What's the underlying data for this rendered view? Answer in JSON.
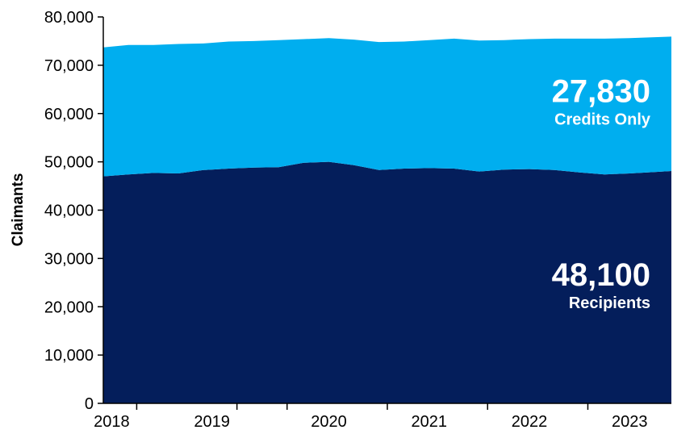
{
  "chart_data": {
    "type": "area",
    "stacked": true,
    "ylabel": "Claimants",
    "ylim": [
      0,
      80000
    ],
    "yticks": [
      0,
      10000,
      20000,
      30000,
      40000,
      50000,
      60000,
      70000,
      80000
    ],
    "ytick_labels": [
      "0",
      "10,000",
      "20,000",
      "30,000",
      "40,000",
      "50,000",
      "60,000",
      "70,000",
      "80,000"
    ],
    "xlim": [
      "2017-12",
      "2023-08"
    ],
    "xtick_labels": [
      {
        "label": "2018",
        "x": "2018-01"
      },
      {
        "label": "2019",
        "x": "2019-01"
      },
      {
        "label": "2020",
        "x": "2020-03"
      },
      {
        "label": "2021",
        "x": "2021-03"
      },
      {
        "label": "2022",
        "x": "2022-03"
      },
      {
        "label": "2023",
        "x": "2023-03"
      }
    ],
    "xtick_marks": [
      "2018-04",
      "2019-04",
      "2019-10",
      "2020-10",
      "2021-10",
      "2022-10"
    ],
    "x": [
      "2017-12",
      "2018-03",
      "2018-06",
      "2018-09",
      "2018-12",
      "2019-03",
      "2019-06",
      "2019-09",
      "2019-12",
      "2020-03",
      "2020-06",
      "2020-09",
      "2020-12",
      "2021-03",
      "2021-06",
      "2021-09",
      "2021-12",
      "2022-03",
      "2022-06",
      "2022-09",
      "2022-12",
      "2023-03",
      "2023-06",
      "2023-08"
    ],
    "series": [
      {
        "name": "Recipients",
        "color": "#041e5b",
        "values": [
          47000,
          47400,
          47700,
          47600,
          48300,
          48600,
          48800,
          48900,
          49800,
          50000,
          49300,
          48300,
          48600,
          48700,
          48600,
          48000,
          48400,
          48500,
          48300,
          47800,
          47400,
          47600,
          47900,
          48100
        ],
        "end_label": "48,100"
      },
      {
        "name": "Credits Only",
        "color": "#00aeef",
        "values": [
          26700,
          26800,
          26500,
          26800,
          26200,
          26300,
          26200,
          26300,
          25600,
          25600,
          26000,
          26500,
          26300,
          26500,
          26900,
          27100,
          26800,
          26900,
          27200,
          27700,
          28100,
          28000,
          27900,
          27830
        ],
        "end_label": "27,830"
      }
    ],
    "grid": false,
    "legend": "none"
  }
}
